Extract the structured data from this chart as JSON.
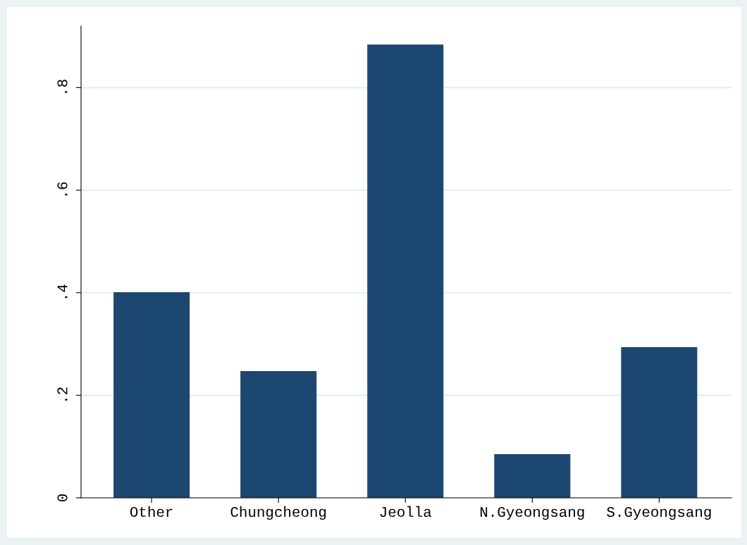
{
  "chart_data": {
    "type": "bar",
    "categories": [
      "Other",
      "Chungcheong",
      "Jeolla",
      "N.Gyeongsang",
      "S.Gyeongsang"
    ],
    "values": [
      0.401,
      0.247,
      0.884,
      0.085,
      0.294
    ],
    "color": "#1c4770",
    "ylim": [
      0,
      0.92
    ],
    "yticks": [
      0,
      {
        "value": 0.2,
        "label": ".2"
      },
      {
        "value": 0.4,
        "label": ".4"
      },
      {
        "value": 0.6,
        "label": ".6"
      },
      {
        "value": 0.8,
        "label": ".8"
      }
    ],
    "grid": "y",
    "legend": false
  }
}
